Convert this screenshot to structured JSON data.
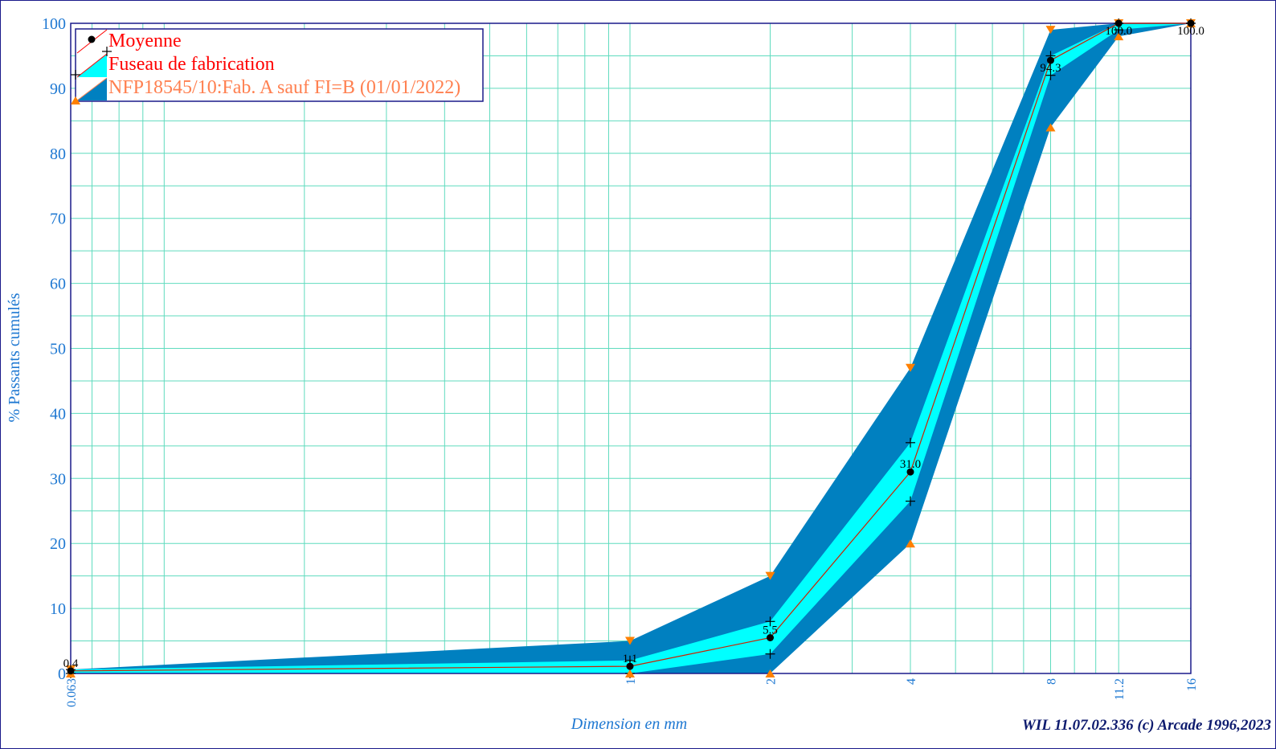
{
  "chart_data": {
    "type": "area",
    "x_scale": "log",
    "xlim": [
      0.063,
      16
    ],
    "ylim": [
      0,
      100
    ],
    "grid": true,
    "xlabel": "Dimension en mm",
    "ylabel": "% Passants cumulés",
    "y_ticks": [
      0,
      10,
      20,
      30,
      40,
      50,
      60,
      70,
      80,
      90,
      100
    ],
    "x_ticks": [
      0.063,
      1,
      2,
      4,
      8,
      11.2,
      16
    ],
    "x_tick_labels": [
      "0.063",
      "1",
      "2",
      "4",
      "8",
      "11.2",
      "16"
    ],
    "legend_position": "top-left",
    "sieves": [
      0.063,
      1,
      2,
      4,
      8,
      11.2,
      16
    ],
    "series": [
      {
        "name": "Moyenne",
        "type": "line",
        "color": "#cc2200",
        "values": [
          0.4,
          1.1,
          5.5,
          31.0,
          94.3,
          100.0,
          100.0
        ],
        "labels": [
          "0.4",
          "1.1",
          "5.5",
          "31.0",
          "94.3",
          "100.0",
          "100.0"
        ]
      },
      {
        "name": "Fuseau de fabrication",
        "type": "band",
        "color": "#00ffff",
        "lower": [
          0,
          0,
          3,
          26.5,
          92,
          99,
          100
        ],
        "upper": [
          0.6,
          2,
          8,
          35.5,
          95,
          100,
          100
        ]
      },
      {
        "name": "NFP18545/10:Fab. A sauf FI=B (01/01/2022)",
        "type": "band",
        "color": "#0080c0",
        "lower": [
          0,
          0,
          0,
          20,
          84,
          98,
          100
        ],
        "upper": [
          0.6,
          5,
          15,
          47,
          99,
          100,
          100
        ]
      }
    ]
  },
  "legend": {
    "items": [
      {
        "label": "Moyenne",
        "color": "#ff0000"
      },
      {
        "label": "Fuseau de fabrication",
        "color": "#ff0000"
      },
      {
        "label": "NFP18545/10:Fab. A sauf FI=B (01/01/2022)",
        "color": "#ff8050"
      }
    ]
  },
  "footer": {
    "credit": "WIL 11.07.02.336 (c) Arcade 1996,2023"
  }
}
